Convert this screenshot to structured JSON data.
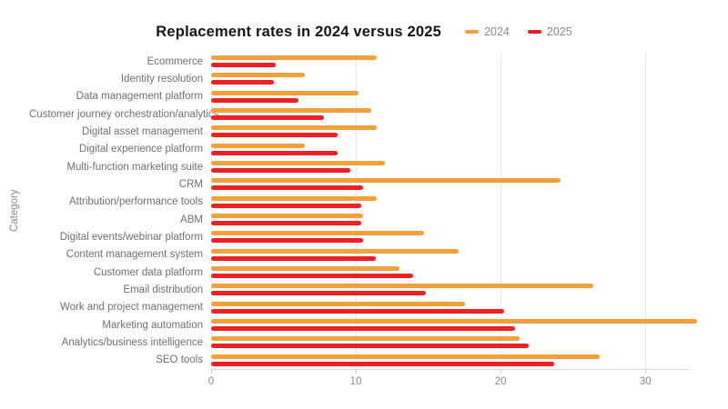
{
  "title": "Replacement rates in 2024 versus 2025",
  "y_axis_label": "Category",
  "legend": {
    "items": [
      {
        "label": "2024",
        "color": "#F2A03B"
      },
      {
        "label": "2025",
        "color": "#EC2025"
      }
    ]
  },
  "chart_data": {
    "type": "bar",
    "orientation": "horizontal",
    "title": "Replacement rates in 2024 versus 2025",
    "xlabel": "",
    "ylabel": "Category",
    "xlim": [
      0,
      33
    ],
    "x_ticks": [
      0,
      10,
      20,
      30
    ],
    "grid": "vertical",
    "legend_position": "top-right",
    "categories": [
      "Ecommerce",
      "Identity resolution",
      "Data management platform",
      "Customer journey orchestration/analytics",
      "Digital asset management",
      "Digital experience platform",
      "Multi-function marketing suite",
      "CRM",
      "Attribution/performance tools",
      "ABM",
      "Digital events/webinar platform",
      "Content management system",
      "Customer data platform",
      "Email distribution",
      "Work and project management",
      "Marketing automation",
      "Analytics/business intelligence",
      "SEO tools"
    ],
    "series": [
      {
        "name": "2024",
        "color": "#F2A03B",
        "values": [
          10.6,
          6.0,
          9.4,
          10.2,
          10.6,
          6.0,
          11.1,
          22.3,
          10.6,
          9.7,
          13.6,
          15.8,
          12.0,
          24.4,
          16.2,
          31.0,
          19.7,
          24.8
        ]
      },
      {
        "name": "2025",
        "color": "#EC2025",
        "values": [
          4.1,
          4.0,
          5.6,
          7.2,
          8.1,
          8.1,
          8.9,
          9.7,
          9.6,
          9.6,
          9.7,
          10.5,
          12.9,
          13.7,
          18.7,
          19.4,
          20.3,
          21.9
        ]
      }
    ]
  }
}
